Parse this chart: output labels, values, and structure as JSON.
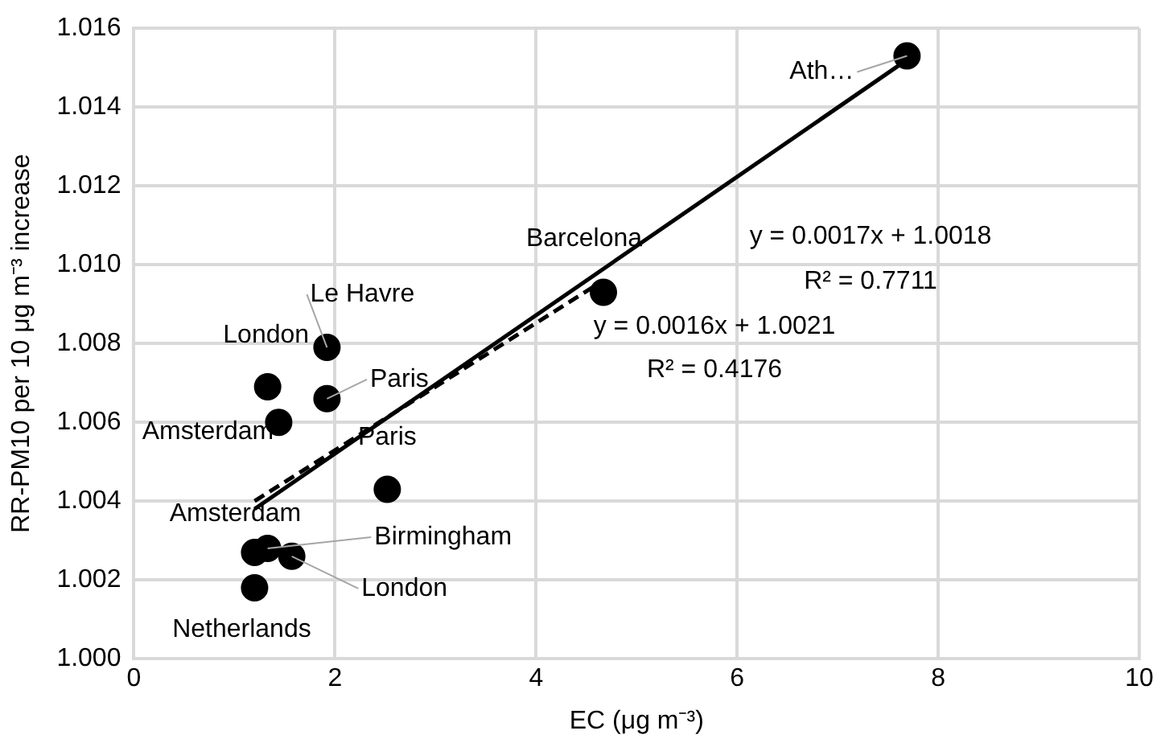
{
  "chart_data": {
    "type": "scatter",
    "xlabel": "EC (μg m⁻³)",
    "ylabel": "RR-PM10 per 10 μg m⁻³ increase",
    "xlim": [
      0,
      10
    ],
    "xticks": [
      0,
      2,
      4,
      6,
      8,
      10
    ],
    "ylim": [
      1.0,
      1.016
    ],
    "yticks": [
      {
        "value": 1.0,
        "label": "1.000"
      },
      {
        "value": 1.002,
        "label": "1.002"
      },
      {
        "value": 1.004,
        "label": "1.004"
      },
      {
        "value": 1.006,
        "label": "1.006"
      },
      {
        "value": 1.008,
        "label": "1.008"
      },
      {
        "value": 1.01,
        "label": "1.010"
      },
      {
        "value": 1.012,
        "label": "1.012"
      },
      {
        "value": 1.014,
        "label": "1.014"
      },
      {
        "value": 1.016,
        "label": "1.016"
      }
    ],
    "grid": true,
    "legend": false,
    "marker": "circle",
    "series": [
      {
        "color": "#000000",
        "x": [
          7.69,
          4.67,
          1.92,
          1.33,
          1.92,
          1.44,
          2.52,
          1.2,
          1.33,
          1.57,
          1.2
        ],
        "values": [
          1.0153,
          1.0093,
          1.0079,
          1.0069,
          1.0066,
          1.006,
          1.0043,
          1.0027,
          1.0028,
          1.0026,
          1.0018
        ]
      },
      {
        "type": "line",
        "color": "#000000",
        "marker": "none",
        "line_style": "solid",
        "x": [
          1.2,
          7.69
        ],
        "values": [
          1.0038,
          1.0152
        ]
      },
      {
        "type": "line",
        "color": "#000000",
        "marker": "none",
        "line_style": "dashed",
        "x": [
          1.2,
          4.67
        ],
        "values": [
          1.004,
          1.0096
        ]
      }
    ],
    "annotations": [
      {
        "text": "Ath…",
        "x": 7.69,
        "y": 1.0153
      },
      {
        "text": "Barcelona",
        "x": 4.67,
        "y": 1.0093
      },
      {
        "text": "Le Havre",
        "x": 1.92,
        "y": 1.0079
      },
      {
        "text": "London",
        "x": 1.33,
        "y": 1.0069
      },
      {
        "text": "Paris",
        "x": 1.92,
        "y": 1.0066
      },
      {
        "text": "Amsterdam",
        "x": 1.44,
        "y": 1.006
      },
      {
        "text": "Paris",
        "x": 2.52,
        "y": 1.0043
      },
      {
        "text": "Amsterdam",
        "x": 1.2,
        "y": 1.0027
      },
      {
        "text": "Birmingham",
        "x": 1.33,
        "y": 1.0028
      },
      {
        "text": "London",
        "x": 1.57,
        "y": 1.0026
      },
      {
        "text": "Netherlands",
        "x": 1.2,
        "y": 1.0018
      },
      "y = 0.0017x + 1.0018",
      "R² = 0.7711",
      "y = 0.0016x + 1.0021",
      "R² = 0.4176"
    ]
  }
}
